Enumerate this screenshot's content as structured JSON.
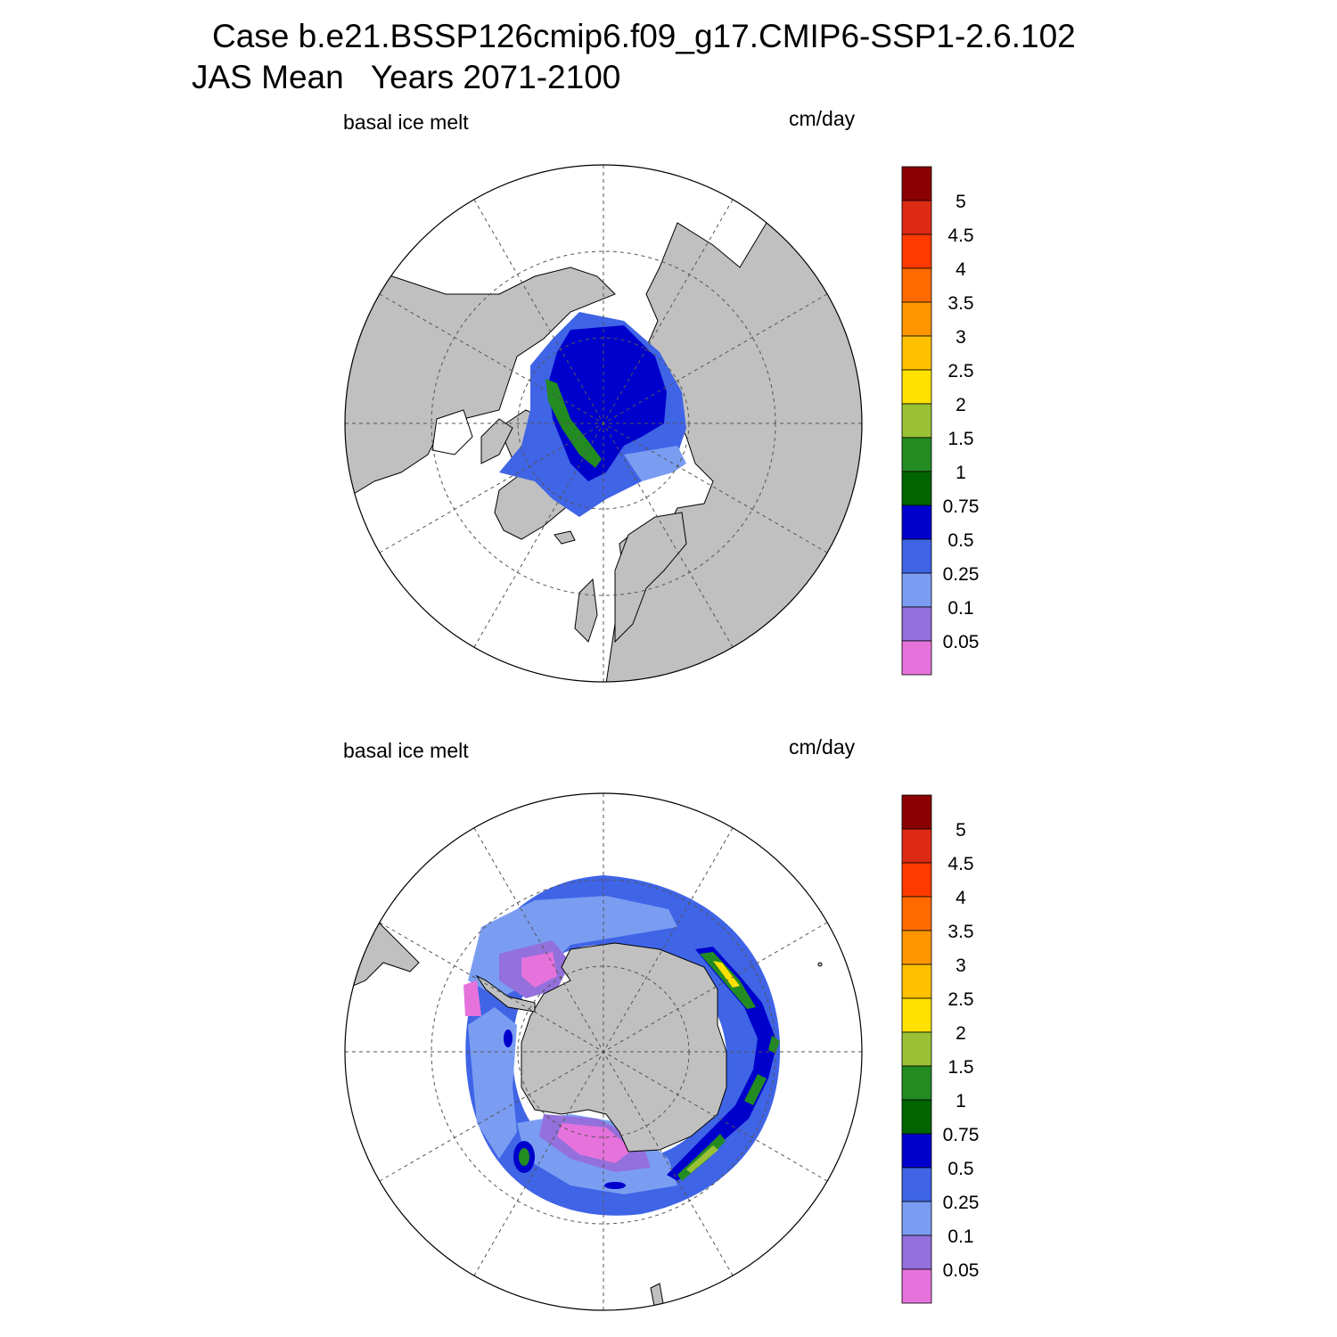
{
  "header": {
    "title_line1": "Case b.e21.BSSP126cmip6.f09_g17.CMIP6-SSP1-2.6.102",
    "title_line2": "JAS Mean   Years 2071-2100"
  },
  "panels": [
    {
      "id": "arctic",
      "hemisphere": "north",
      "left_label": "basal ice melt",
      "right_label": "cm/day"
    },
    {
      "id": "antarctic",
      "hemisphere": "south",
      "left_label": "basal ice melt",
      "right_label": "cm/day"
    }
  ],
  "colorbar": {
    "labels": [
      "5",
      "4.5",
      "4",
      "3.5",
      "3",
      "2.5",
      "2",
      "1.5",
      "1",
      "0.75",
      "0.5",
      "0.25",
      "0.1",
      "0.05"
    ],
    "colors": [
      "#8b0000",
      "#dc2a14",
      "#ff3a00",
      "#ff6a00",
      "#ff9600",
      "#ffc000",
      "#ffe100",
      "#9ac135",
      "#228b22",
      "#006400",
      "#0000cd",
      "#3f64e6",
      "#7a9df2",
      "#9370db",
      "#e672dc"
    ]
  },
  "map_colors": {
    "land": "#c0c0c0",
    "ocean": "#ffffff",
    "grid": "#555555",
    "outline": "#000000"
  }
}
